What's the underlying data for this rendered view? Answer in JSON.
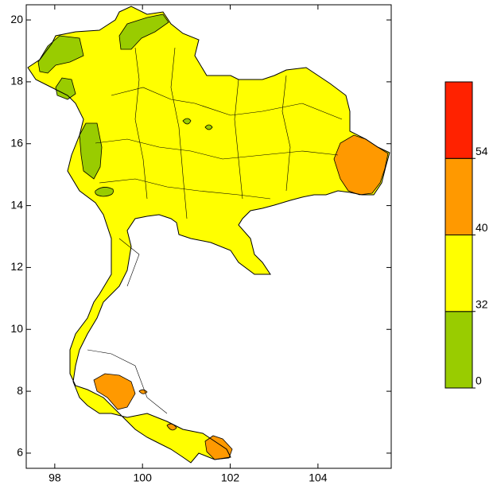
{
  "map": {
    "xlim": [
      97.35,
      105.67
    ],
    "ylim": [
      5.51,
      20.49
    ],
    "xticks": [
      98,
      100,
      102,
      104
    ],
    "yticks": [
      6,
      8,
      10,
      12,
      14,
      16,
      18,
      20
    ],
    "colorbar": {
      "levels": [
        0,
        32,
        40,
        54
      ],
      "colors": [
        "#99cc00",
        "#ffff00",
        "#ff9900",
        "#ff2200"
      ]
    }
  }
}
